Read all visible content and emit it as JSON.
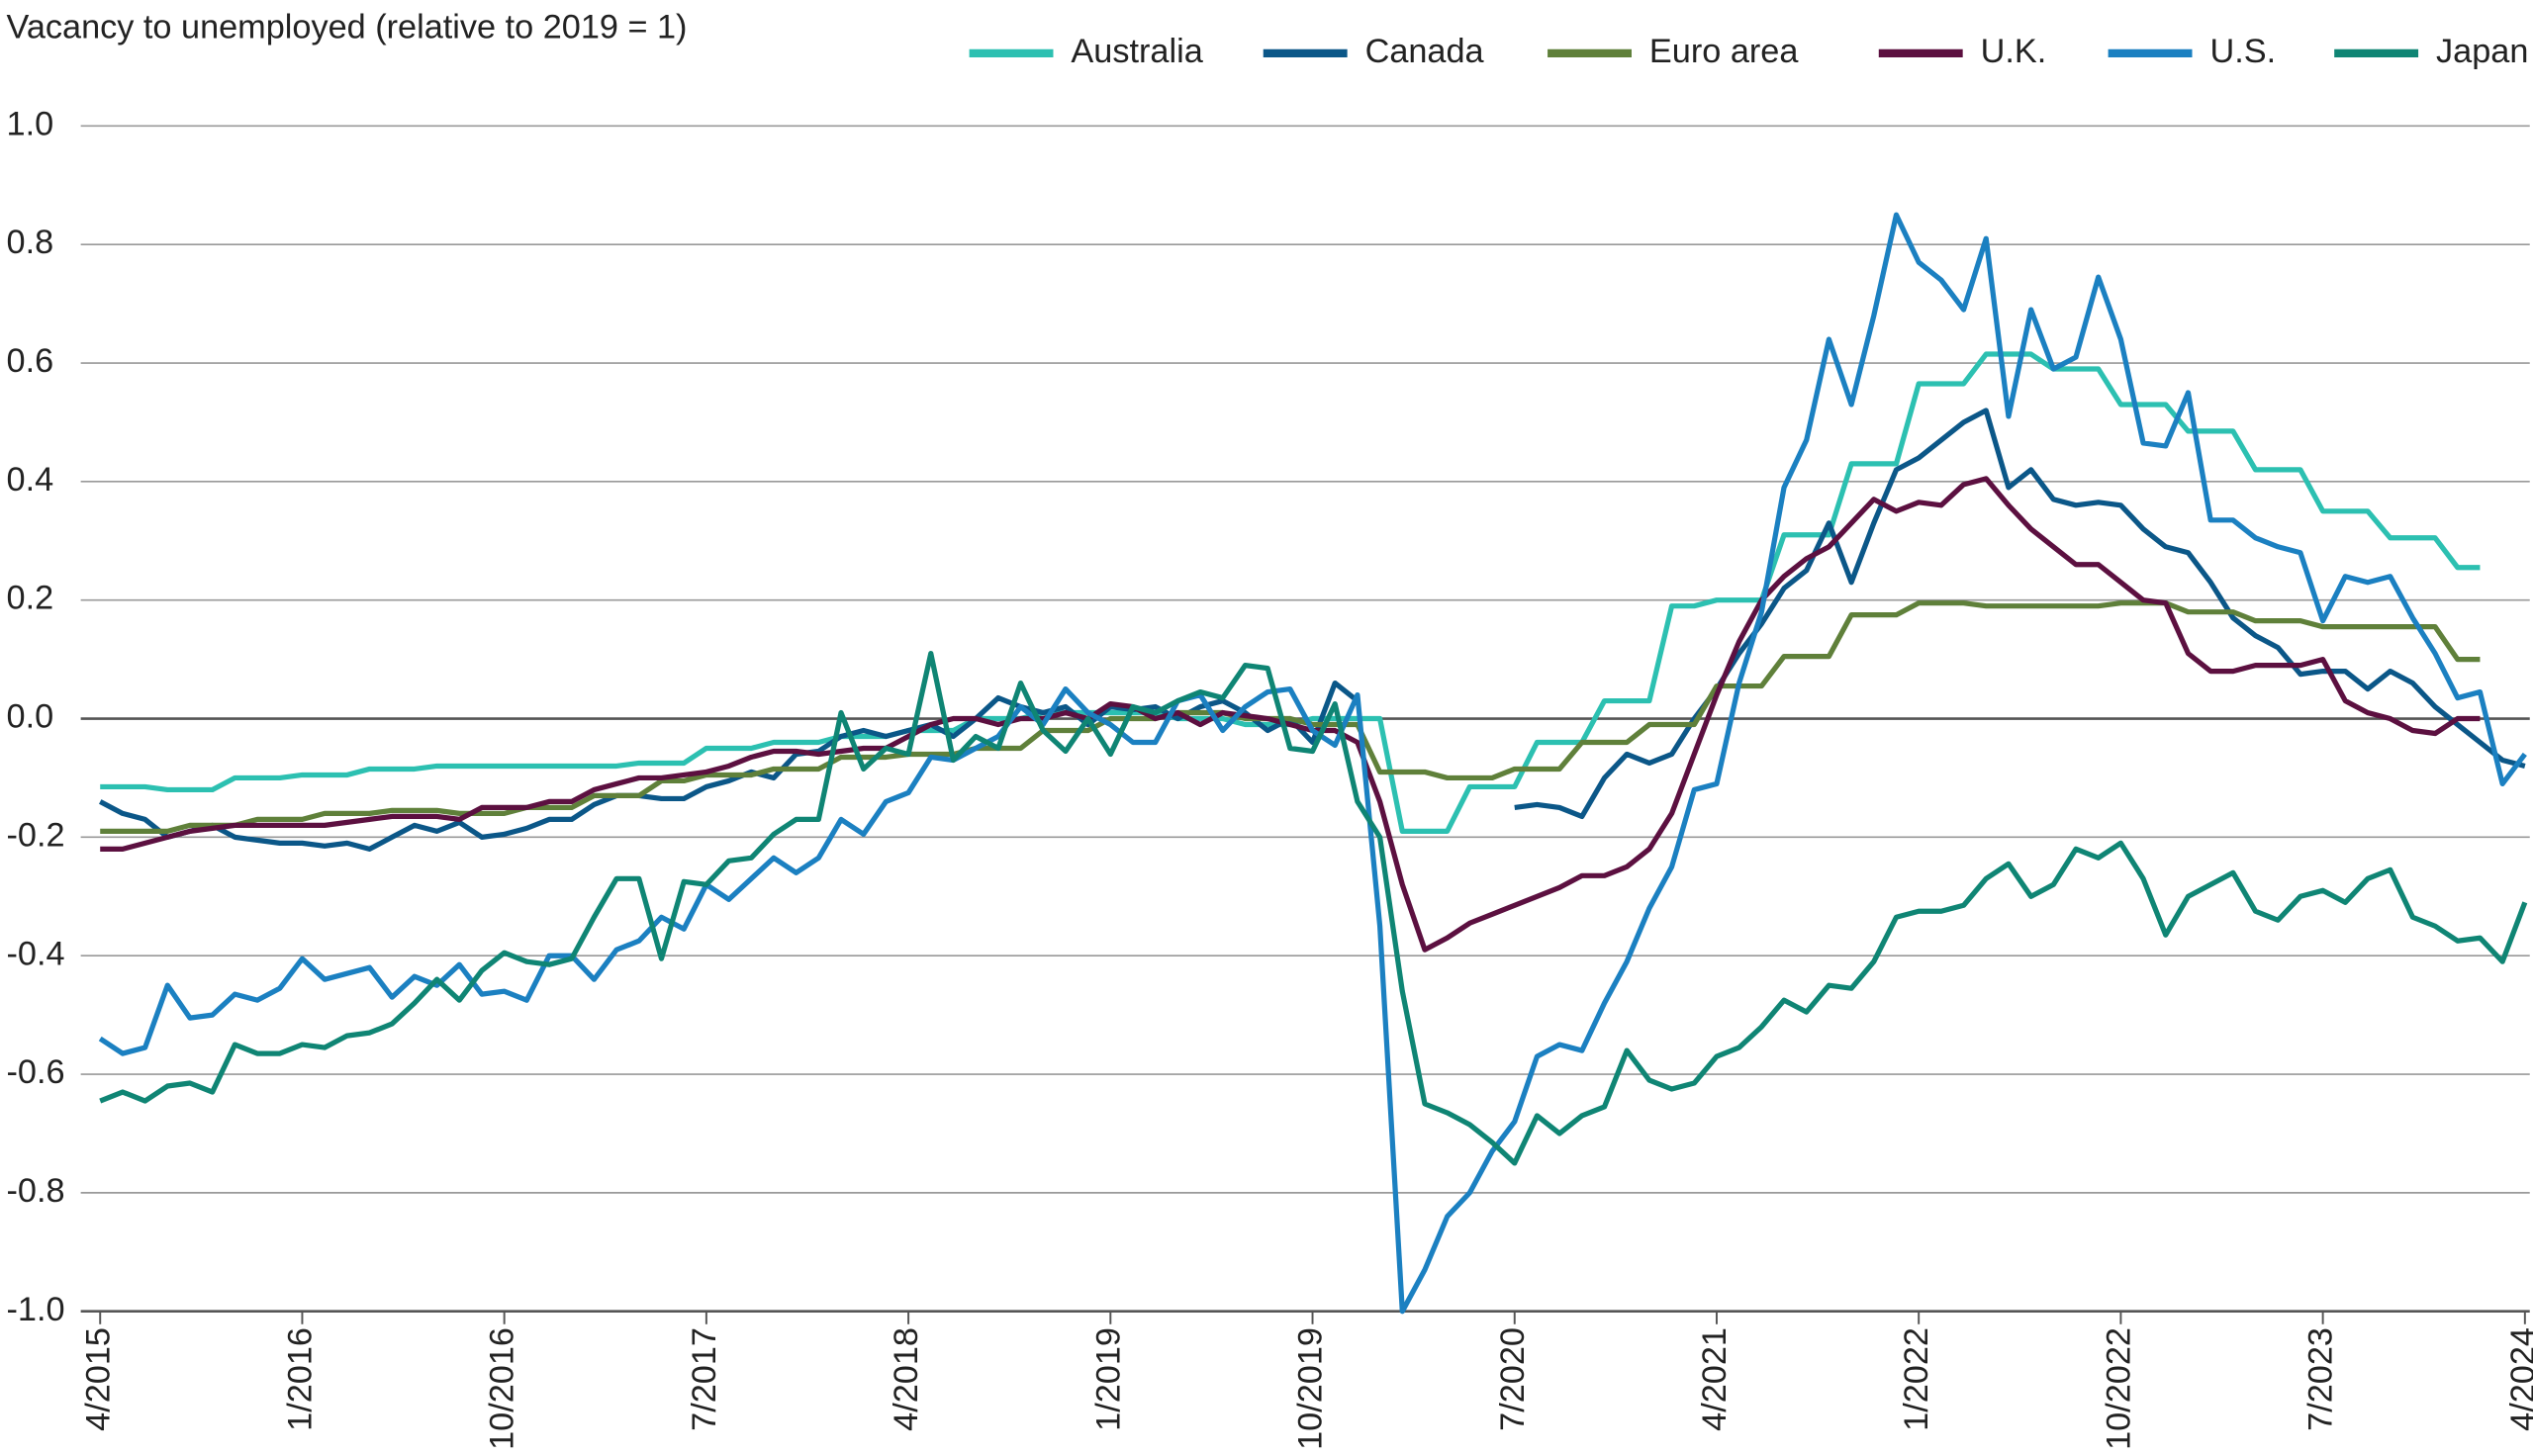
{
  "chart_data": {
    "type": "line",
    "title": "Vacancy to unemployed (relative to 2019 = 1)",
    "categories": [
      "4/2015",
      null,
      null,
      null,
      null,
      null,
      null,
      null,
      null,
      "1/2016",
      null,
      null,
      null,
      null,
      null,
      null,
      null,
      null,
      "10/2016",
      null,
      null,
      null,
      null,
      null,
      null,
      null,
      null,
      "7/2017",
      null,
      null,
      null,
      null,
      null,
      null,
      null,
      null,
      "4/2018",
      null,
      null,
      null,
      null,
      null,
      null,
      null,
      null,
      "1/2019",
      null,
      null,
      null,
      null,
      null,
      null,
      null,
      null,
      "10/2019",
      null,
      null,
      null,
      null,
      null,
      null,
      null,
      null,
      "7/2020",
      null,
      null,
      null,
      null,
      null,
      null,
      null,
      null,
      "4/2021",
      null,
      null,
      null,
      null,
      null,
      null,
      null,
      null,
      "1/2022",
      null,
      null,
      null,
      null,
      null,
      null,
      null,
      null,
      "10/2022",
      null,
      null,
      null,
      null,
      null,
      null,
      null,
      null,
      "7/2023",
      null,
      null,
      null,
      null,
      null,
      null,
      null,
      null,
      "4/2024"
    ],
    "ylim": [
      -1,
      1
    ],
    "yticks": [
      {
        "value": 1,
        "label": "1.0"
      },
      0.8,
      0.6,
      0.4,
      0.2,
      {
        "value": 0,
        "label": "0.0"
      },
      -0.2,
      -0.4,
      -0.6,
      -0.8,
      {
        "value": -1,
        "label": "-1.0"
      }
    ],
    "grid": true,
    "legend": "top",
    "series": [
      {
        "name": "Australia",
        "color": "#2cc0b1",
        "values": [
          -0.115,
          -0.115,
          -0.115,
          -0.12,
          -0.12,
          -0.12,
          -0.1,
          -0.1,
          -0.1,
          -0.095,
          -0.095,
          -0.095,
          -0.085,
          -0.085,
          -0.085,
          -0.08,
          -0.08,
          -0.08,
          -0.08,
          -0.08,
          -0.08,
          -0.08,
          -0.08,
          -0.08,
          -0.075,
          -0.075,
          -0.075,
          -0.05,
          -0.05,
          -0.05,
          -0.04,
          -0.04,
          -0.04,
          -0.03,
          -0.03,
          -0.03,
          -0.02,
          -0.02,
          -0.02,
          0.0,
          0.0,
          0.0,
          0.01,
          0.01,
          0.01,
          0.01,
          0.01,
          0.01,
          0.0,
          0.0,
          0.0,
          -0.01,
          -0.01,
          -0.01,
          0.0,
          0.0,
          0.0,
          0.0,
          -0.19,
          -0.19,
          -0.19,
          -0.115,
          -0.115,
          -0.115,
          -0.04,
          -0.04,
          -0.04,
          0.03,
          0.03,
          0.03,
          0.19,
          0.19,
          0.2,
          0.2,
          0.2,
          0.31,
          0.31,
          0.31,
          0.43,
          0.43,
          0.43,
          0.565,
          0.565,
          0.565,
          0.615,
          0.615,
          0.615,
          0.59,
          0.59,
          0.59,
          0.53,
          0.53,
          0.53,
          0.485,
          0.485,
          0.485,
          0.42,
          0.42,
          0.42,
          0.35,
          0.35,
          0.35,
          0.305,
          0.305,
          0.305,
          0.255,
          0.255,
          null,
          null
        ]
      },
      {
        "name": "Canada",
        "color": "#0b5788",
        "values": [
          -0.14,
          -0.16,
          -0.17,
          -0.2,
          -0.19,
          -0.18,
          -0.2,
          -0.205,
          -0.21,
          -0.21,
          -0.215,
          -0.21,
          -0.22,
          -0.2,
          -0.18,
          -0.19,
          -0.175,
          -0.2,
          -0.195,
          -0.185,
          -0.17,
          -0.17,
          -0.145,
          -0.13,
          -0.13,
          -0.135,
          -0.135,
          -0.115,
          -0.105,
          -0.09,
          -0.1,
          -0.06,
          -0.055,
          -0.03,
          -0.02,
          -0.03,
          -0.02,
          -0.01,
          -0.03,
          0.0,
          0.035,
          0.02,
          0.01,
          0.02,
          -0.01,
          0.02,
          0.015,
          0.02,
          0.0,
          0.02,
          0.03,
          0.01,
          -0.02,
          0.0,
          -0.04,
          0.06,
          0.03,
          null,
          null,
          null,
          null,
          null,
          null,
          -0.15,
          -0.145,
          -0.15,
          -0.165,
          -0.1,
          -0.06,
          -0.075,
          -0.06,
          0.0,
          0.05,
          0.11,
          0.16,
          0.22,
          0.25,
          0.33,
          0.23,
          0.33,
          0.42,
          0.44,
          0.47,
          0.5,
          0.52,
          0.39,
          0.42,
          0.37,
          0.36,
          0.365,
          0.36,
          0.32,
          0.29,
          0.28,
          0.23,
          0.17,
          0.14,
          0.12,
          0.075,
          0.08,
          0.08,
          0.05,
          0.08,
          0.06,
          0.02,
          -0.01,
          -0.04,
          -0.07,
          -0.08
        ]
      },
      {
        "name": "Euro area",
        "color": "#5f803a",
        "values": [
          -0.19,
          -0.19,
          -0.19,
          -0.19,
          -0.18,
          -0.18,
          -0.18,
          -0.17,
          -0.17,
          -0.17,
          -0.16,
          -0.16,
          -0.16,
          -0.155,
          -0.155,
          -0.155,
          -0.16,
          -0.16,
          -0.16,
          -0.15,
          -0.15,
          -0.15,
          -0.13,
          -0.13,
          -0.13,
          -0.105,
          -0.105,
          -0.095,
          -0.095,
          -0.095,
          -0.085,
          -0.085,
          -0.085,
          -0.065,
          -0.065,
          -0.065,
          -0.06,
          -0.06,
          -0.06,
          -0.05,
          -0.05,
          -0.05,
          -0.02,
          -0.02,
          -0.02,
          0.0,
          0.0,
          0.0,
          0.01,
          0.01,
          0.01,
          0.0,
          0.0,
          0.0,
          -0.01,
          -0.01,
          -0.01,
          -0.09,
          -0.09,
          -0.09,
          -0.1,
          -0.1,
          -0.1,
          -0.085,
          -0.085,
          -0.085,
          -0.04,
          -0.04,
          -0.04,
          -0.01,
          -0.01,
          -0.01,
          0.055,
          0.055,
          0.055,
          0.105,
          0.105,
          0.105,
          0.175,
          0.175,
          0.175,
          0.195,
          0.195,
          0.195,
          0.19,
          0.19,
          0.19,
          0.19,
          0.19,
          0.19,
          0.195,
          0.195,
          0.195,
          0.18,
          0.18,
          0.18,
          0.165,
          0.165,
          0.165,
          0.155,
          0.155,
          0.155,
          0.155,
          0.155,
          0.155,
          0.1,
          0.1,
          null,
          null
        ]
      },
      {
        "name": "U.K.",
        "color": "#5c1040",
        "values": [
          -0.22,
          -0.22,
          -0.21,
          -0.2,
          -0.19,
          -0.185,
          -0.18,
          -0.18,
          -0.18,
          -0.18,
          -0.18,
          -0.175,
          -0.17,
          -0.165,
          -0.165,
          -0.165,
          -0.17,
          -0.15,
          -0.15,
          -0.15,
          -0.14,
          -0.14,
          -0.12,
          -0.11,
          -0.1,
          -0.1,
          -0.095,
          -0.09,
          -0.08,
          -0.065,
          -0.055,
          -0.055,
          -0.06,
          -0.055,
          -0.05,
          -0.05,
          -0.03,
          -0.01,
          0.0,
          0.0,
          -0.01,
          0.0,
          0.0,
          0.01,
          0.0,
          0.025,
          0.02,
          0.0,
          0.01,
          -0.01,
          0.01,
          0.005,
          0.0,
          -0.01,
          -0.02,
          -0.02,
          -0.04,
          -0.14,
          -0.28,
          -0.39,
          -0.37,
          -0.345,
          -0.33,
          -0.315,
          -0.3,
          -0.285,
          -0.265,
          -0.265,
          -0.25,
          -0.22,
          -0.16,
          -0.06,
          0.04,
          0.13,
          0.2,
          0.24,
          0.27,
          0.29,
          0.33,
          0.37,
          0.35,
          0.365,
          0.36,
          0.395,
          0.405,
          0.36,
          0.32,
          0.29,
          0.26,
          0.26,
          0.23,
          0.2,
          0.195,
          0.11,
          0.08,
          0.08,
          0.09,
          0.09,
          0.09,
          0.1,
          0.03,
          0.01,
          0.0,
          -0.02,
          -0.025,
          0.0,
          0.0,
          null,
          null
        ]
      },
      {
        "name": "U.S.",
        "color": "#1b80c1",
        "values": [
          -0.54,
          -0.565,
          -0.555,
          -0.45,
          -0.505,
          -0.5,
          -0.465,
          -0.475,
          -0.455,
          -0.405,
          -0.44,
          -0.43,
          -0.42,
          -0.47,
          -0.435,
          -0.45,
          -0.415,
          -0.465,
          -0.46,
          -0.475,
          -0.4,
          -0.4,
          -0.44,
          -0.39,
          -0.375,
          -0.335,
          -0.355,
          -0.28,
          -0.305,
          -0.27,
          -0.235,
          -0.26,
          -0.235,
          -0.17,
          -0.195,
          -0.14,
          -0.125,
          -0.065,
          -0.07,
          -0.05,
          -0.03,
          0.02,
          -0.01,
          0.05,
          0.01,
          -0.01,
          -0.04,
          -0.04,
          0.03,
          0.04,
          -0.02,
          0.02,
          0.045,
          0.05,
          -0.02,
          -0.045,
          0.04,
          -0.35,
          -1.0,
          -0.93,
          -0.84,
          -0.8,
          -0.73,
          -0.68,
          -0.57,
          -0.55,
          -0.56,
          -0.48,
          -0.41,
          -0.32,
          -0.25,
          -0.12,
          -0.11,
          0.06,
          0.18,
          0.39,
          0.47,
          0.64,
          0.53,
          0.68,
          0.85,
          0.77,
          0.74,
          0.69,
          0.81,
          0.51,
          0.69,
          0.59,
          0.61,
          0.745,
          0.64,
          0.465,
          0.46,
          0.55,
          0.335,
          0.335,
          0.305,
          0.29,
          0.28,
          0.165,
          0.24,
          0.23,
          0.24,
          0.17,
          0.11,
          0.035,
          0.045,
          -0.11,
          -0.06
        ]
      },
      {
        "name": "Japan",
        "color": "#0f8574",
        "values": [
          -0.645,
          -0.63,
          -0.645,
          -0.62,
          -0.615,
          -0.63,
          -0.55,
          -0.565,
          -0.565,
          -0.55,
          -0.555,
          -0.535,
          -0.53,
          -0.515,
          -0.48,
          -0.44,
          -0.475,
          -0.425,
          -0.395,
          -0.41,
          -0.415,
          -0.405,
          -0.335,
          -0.27,
          -0.27,
          -0.405,
          -0.275,
          -0.28,
          -0.24,
          -0.235,
          -0.195,
          -0.17,
          -0.17,
          0.01,
          -0.085,
          -0.05,
          -0.06,
          0.11,
          -0.07,
          -0.03,
          -0.05,
          0.06,
          -0.02,
          -0.055,
          0.0,
          -0.06,
          0.02,
          0.01,
          0.03,
          0.045,
          0.035,
          0.09,
          0.085,
          -0.05,
          -0.055,
          0.025,
          -0.14,
          -0.2,
          -0.46,
          -0.65,
          -0.665,
          -0.685,
          -0.715,
          -0.75,
          -0.67,
          -0.7,
          -0.67,
          -0.655,
          -0.56,
          -0.61,
          -0.625,
          -0.615,
          -0.57,
          -0.555,
          -0.52,
          -0.475,
          -0.495,
          -0.45,
          -0.455,
          -0.41,
          -0.335,
          -0.325,
          -0.325,
          -0.315,
          -0.27,
          -0.245,
          -0.3,
          -0.28,
          -0.22,
          -0.235,
          -0.21,
          -0.27,
          -0.365,
          -0.3,
          -0.28,
          -0.26,
          -0.325,
          -0.34,
          -0.3,
          -0.29,
          -0.31,
          -0.27,
          -0.255,
          -0.335,
          -0.35,
          -0.375,
          -0.37,
          -0.41,
          -0.31
        ]
      }
    ]
  }
}
